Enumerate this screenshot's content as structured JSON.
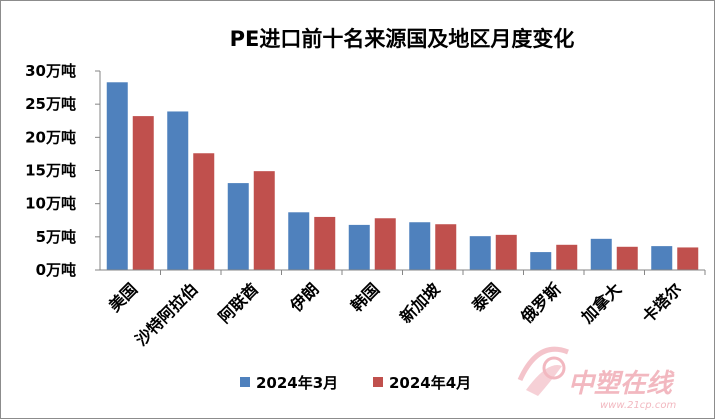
{
  "chart_data": {
    "type": "bar",
    "title": "PE进口前十名来源国及地区月度变化",
    "categories": [
      "美国",
      "沙特阿拉伯",
      "阿联酋",
      "伊朗",
      "韩国",
      "新加坡",
      "泰国",
      "俄罗斯",
      "加拿大",
      "卡塔尔"
    ],
    "series": [
      {
        "name": "2024年3月",
        "color": "#4f81bd",
        "values": [
          28.3,
          23.9,
          13.1,
          8.7,
          6.8,
          7.2,
          5.1,
          2.7,
          4.7,
          3.6
        ]
      },
      {
        "name": "2024年4月",
        "color": "#c0504d",
        "values": [
          23.2,
          17.6,
          14.9,
          8.0,
          7.8,
          6.9,
          5.3,
          3.8,
          3.5,
          3.4
        ]
      }
    ],
    "yticks": [
      "0万吨",
      "5万吨",
      "10万吨",
      "15万吨",
      "20万吨",
      "25万吨",
      "30万吨"
    ],
    "ylim": [
      0,
      30
    ],
    "grid": false,
    "legend": "bottom"
  },
  "watermark": {
    "text": "中塑在线",
    "url": "www.21cp.com"
  }
}
